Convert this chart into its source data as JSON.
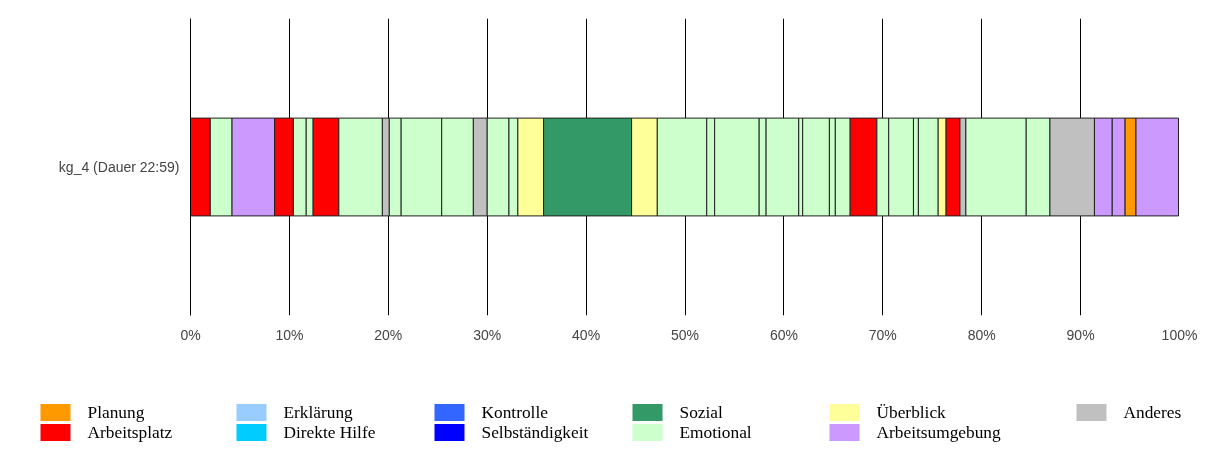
{
  "chart_data": {
    "type": "bar",
    "orientation": "horizontal",
    "stacked": true,
    "categories": [
      "kg_4 (Dauer 22:59)"
    ],
    "xlim": [
      0,
      100
    ],
    "xticks": [
      {
        "value": 0,
        "label": "0%"
      },
      {
        "value": 10,
        "label": "10%"
      },
      {
        "value": 20,
        "label": "20%"
      },
      {
        "value": 30,
        "label": "30%"
      },
      {
        "value": 40,
        "label": "40%"
      },
      {
        "value": 50,
        "label": "50%"
      },
      {
        "value": 60,
        "label": "60%"
      },
      {
        "value": 70,
        "label": "70%"
      },
      {
        "value": 80,
        "label": "80%"
      },
      {
        "value": 90,
        "label": "90%"
      },
      {
        "value": 100,
        "label": "100%"
      }
    ],
    "grid": "x",
    "legend": "bottom",
    "series": [
      {
        "name": "Planung",
        "color": "#ff9900",
        "values": [
          null
        ]
      },
      {
        "name": "Arbeitsplatz",
        "color": "#ff0000",
        "values": [
          null
        ]
      },
      {
        "name": "Erklärung",
        "color": "#99ccff",
        "values": [
          null
        ]
      },
      {
        "name": "Direkte Hilfe",
        "color": "#00ccff",
        "values": [
          null
        ]
      },
      {
        "name": "Kontrolle",
        "color": "#3366ff",
        "values": [
          null
        ]
      },
      {
        "name": "Selbständigkeit",
        "color": "#0000ff",
        "values": [
          null
        ]
      },
      {
        "name": "Sozial",
        "color": "#339966",
        "values": [
          null
        ]
      },
      {
        "name": "Emotional",
        "color": "#ccffcc",
        "values": [
          null
        ]
      },
      {
        "name": "Überblick",
        "color": "#ffff99",
        "values": [
          null
        ]
      },
      {
        "name": "Arbeitsumgebung",
        "color": "#cc99ff",
        "values": [
          null
        ]
      },
      {
        "name": "Anderes",
        "color": "#c0c0c0",
        "values": [
          null
        ]
      },
      {
        "color": "#ff0000",
        "values": [
          2.0
        ]
      },
      {
        "color": "#ccffcc",
        "values": [
          2.2
        ]
      },
      {
        "color": "#cc99ff",
        "values": [
          4.3
        ]
      },
      {
        "color": "#ff0000",
        "values": [
          1.9
        ]
      },
      {
        "color": "#ccffcc",
        "values": [
          1.3
        ]
      },
      {
        "color": "#ccffcc",
        "values": [
          0.7
        ]
      },
      {
        "color": "#ff0000",
        "values": [
          2.6
        ]
      },
      {
        "color": "#ccffcc",
        "values": [
          4.4
        ]
      },
      {
        "color": "#c0c0c0",
        "values": [
          0.7
        ]
      },
      {
        "color": "#ccffcc",
        "values": [
          1.2
        ]
      },
      {
        "color": "#ccffcc",
        "values": [
          4.1
        ]
      },
      {
        "color": "#ccffcc",
        "values": [
          3.2
        ]
      },
      {
        "color": "#c0c0c0",
        "values": [
          1.4
        ]
      },
      {
        "color": "#ccffcc",
        "values": [
          2.2
        ]
      },
      {
        "color": "#ccffcc",
        "values": [
          0.9
        ]
      },
      {
        "color": "#ffff99",
        "values": [
          2.6
        ]
      },
      {
        "color": "#339966",
        "values": [
          8.9
        ]
      },
      {
        "color": "#ffff99",
        "values": [
          2.6
        ]
      },
      {
        "color": "#ccffcc",
        "values": [
          5.0
        ]
      },
      {
        "color": "#ccffcc",
        "values": [
          0.8
        ]
      },
      {
        "color": "#ccffcc",
        "values": [
          4.5
        ]
      },
      {
        "color": "#ccffcc",
        "values": [
          0.7
        ]
      },
      {
        "color": "#ccffcc",
        "values": [
          3.3
        ]
      },
      {
        "color": "#ccffcc",
        "values": [
          0.4
        ]
      },
      {
        "color": "#ccffcc",
        "values": [
          2.7
        ]
      },
      {
        "color": "#ccffcc",
        "values": [
          0.6
        ]
      },
      {
        "color": "#ccffcc",
        "values": [
          1.5
        ]
      },
      {
        "color": "#ff0000",
        "values": [
          2.7
        ]
      },
      {
        "color": "#ccffcc",
        "values": [
          1.2
        ]
      },
      {
        "color": "#ccffcc",
        "values": [
          2.5
        ]
      },
      {
        "color": "#ccffcc",
        "values": [
          0.5
        ]
      },
      {
        "color": "#ccffcc",
        "values": [
          2.0
        ]
      },
      {
        "color": "#ffff99",
        "values": [
          0.8
        ]
      },
      {
        "color": "#ff0000",
        "values": [
          1.4
        ]
      },
      {
        "color": "#c0c0c0",
        "values": [
          0.6
        ]
      },
      {
        "color": "#ccffcc",
        "values": [
          6.1
        ]
      },
      {
        "color": "#ccffcc",
        "values": [
          2.4
        ]
      },
      {
        "color": "#c0c0c0",
        "values": [
          4.5
        ]
      },
      {
        "color": "#cc99ff",
        "values": [
          1.8
        ]
      },
      {
        "color": "#cc99ff",
        "values": [
          1.3
        ]
      },
      {
        "color": "#ff9900",
        "values": [
          1.1
        ]
      },
      {
        "color": "#cc99ff",
        "values": [
          4.3
        ]
      }
    ]
  }
}
